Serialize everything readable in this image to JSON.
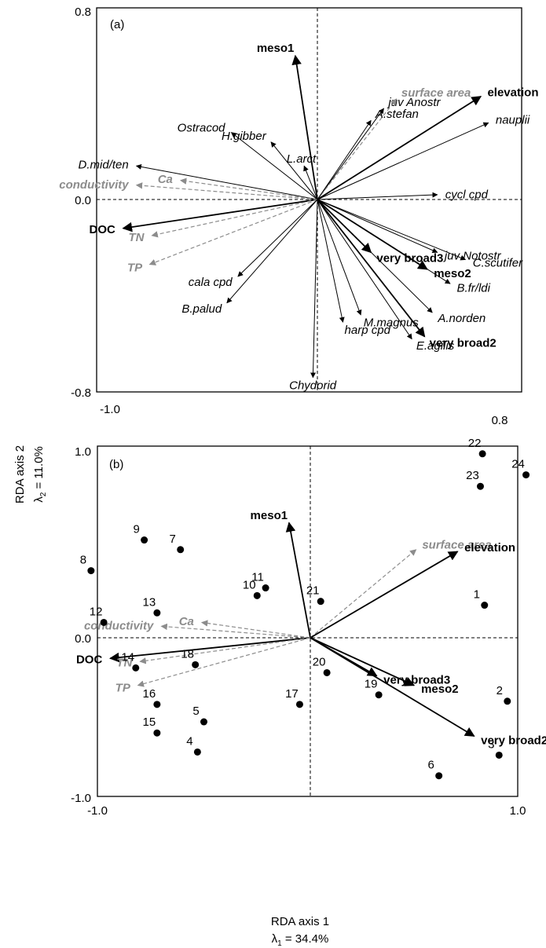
{
  "charts": [
    {
      "type": "scatter",
      "panel_label": "(a)",
      "xlim": [
        -1.0,
        0.8
      ],
      "ylim": [
        -0.8,
        0.8
      ],
      "x_ticks": [
        "-1.0",
        "0.8"
      ],
      "y_ticks": [
        "0.8",
        "0.0",
        "-0.8"
      ],
      "vectors": [
        {
          "name": "meso1",
          "x": -0.1,
          "y": 0.6,
          "style": "env"
        },
        {
          "name": "juv Anostr",
          "x": 0.26,
          "y": 0.38,
          "style": "species"
        },
        {
          "name": "surface area",
          "x": 0.31,
          "y": 0.42,
          "style": "env-grey"
        },
        {
          "name": "A.stefan",
          "x": 0.21,
          "y": 0.33,
          "style": "species"
        },
        {
          "name": "elevation",
          "x": 0.64,
          "y": 0.43,
          "style": "env"
        },
        {
          "name": "nauplii",
          "x": 0.67,
          "y": 0.32,
          "style": "species"
        },
        {
          "name": "Ostracod",
          "x": -0.39,
          "y": 0.28,
          "style": "species"
        },
        {
          "name": "H.gibber",
          "x": -0.21,
          "y": 0.24,
          "style": "species"
        },
        {
          "name": "L.arct",
          "x": -0.06,
          "y": 0.14,
          "style": "species"
        },
        {
          "name": "D.mid/ten",
          "x": -0.82,
          "y": 0.14,
          "style": "species"
        },
        {
          "name": "Ca",
          "x": -0.62,
          "y": 0.08,
          "style": "env-grey"
        },
        {
          "name": "conductivity",
          "x": -0.82,
          "y": 0.06,
          "style": "env-grey"
        },
        {
          "name": "cycl cpd",
          "x": 0.47,
          "y": 0.02,
          "style": "species"
        },
        {
          "name": "DOC",
          "x": -0.88,
          "y": -0.12,
          "style": "env"
        },
        {
          "name": "TN",
          "x": -0.75,
          "y": -0.15,
          "style": "env-grey"
        },
        {
          "name": "TP",
          "x": -0.76,
          "y": -0.27,
          "style": "env-grey"
        },
        {
          "name": "cala cpd",
          "x": -0.36,
          "y": -0.32,
          "style": "species"
        },
        {
          "name": "B.palud",
          "x": -0.41,
          "y": -0.43,
          "style": "species"
        },
        {
          "name": "juv Notostr",
          "x": 0.47,
          "y": -0.22,
          "style": "species"
        },
        {
          "name": "very broad3",
          "x": 0.21,
          "y": -0.22,
          "style": "env"
        },
        {
          "name": "C.scutifer",
          "x": 0.58,
          "y": -0.25,
          "style": "species"
        },
        {
          "name": "meso2",
          "x": 0.43,
          "y": -0.29,
          "style": "env"
        },
        {
          "name": "B.fr/ldi",
          "x": 0.52,
          "y": -0.35,
          "style": "species"
        },
        {
          "name": "M.magnus",
          "x": 0.17,
          "y": -0.48,
          "style": "species"
        },
        {
          "name": "A.norden",
          "x": 0.45,
          "y": -0.47,
          "style": "species"
        },
        {
          "name": "harp cpd",
          "x": 0.1,
          "y": -0.51,
          "style": "species"
        },
        {
          "name": "very broad2",
          "x": 0.42,
          "y": -0.57,
          "style": "env"
        },
        {
          "name": "E.agilis",
          "x": 0.37,
          "y": -0.58,
          "style": "species"
        },
        {
          "name": "Chydorid",
          "x": -0.02,
          "y": -0.74,
          "style": "species"
        }
      ]
    },
    {
      "type": "scatter",
      "panel_label": "(b)",
      "xlim": [
        -1.0,
        1.0
      ],
      "ylim": [
        -1.0,
        1.0
      ],
      "x_ticks": [
        "-1.0",
        "1.0"
      ],
      "y_ticks": [
        "1.0",
        "0.0",
        "-1.0"
      ],
      "vectors": [
        {
          "name": "meso1",
          "x": -0.1,
          "y": 0.6,
          "style": "env"
        },
        {
          "name": "surface area",
          "x": 0.51,
          "y": 0.46,
          "style": "env-grey"
        },
        {
          "name": "elevation",
          "x": 0.71,
          "y": 0.45,
          "style": "env"
        },
        {
          "name": "Ca",
          "x": -0.51,
          "y": 0.08,
          "style": "env-grey"
        },
        {
          "name": "conductivity",
          "x": -0.7,
          "y": 0.06,
          "style": "env-grey"
        },
        {
          "name": "DOC",
          "x": -0.94,
          "y": -0.13,
          "style": "env"
        },
        {
          "name": "TN",
          "x": -0.8,
          "y": -0.15,
          "style": "env-grey"
        },
        {
          "name": "TP",
          "x": -0.81,
          "y": -0.3,
          "style": "env-grey"
        },
        {
          "name": "very broad3",
          "x": 0.32,
          "y": -0.24,
          "style": "env"
        },
        {
          "name": "meso2",
          "x": 0.5,
          "y": -0.3,
          "style": "env"
        },
        {
          "name": "very broad2",
          "x": 0.79,
          "y": -0.62,
          "style": "env"
        }
      ],
      "sites": [
        {
          "label": "1",
          "x": 0.84,
          "y": 0.17
        },
        {
          "label": "2",
          "x": 0.95,
          "y": -0.4
        },
        {
          "label": "3",
          "x": 0.91,
          "y": -0.74
        },
        {
          "label": "4",
          "x": -0.53,
          "y": -0.72
        },
        {
          "label": "5",
          "x": -0.5,
          "y": -0.53
        },
        {
          "label": "6",
          "x": 0.62,
          "y": -0.87
        },
        {
          "label": "7",
          "x": -0.61,
          "y": 0.46
        },
        {
          "label": "8",
          "x": -1.03,
          "y": 0.35
        },
        {
          "label": "9",
          "x": -0.78,
          "y": 0.51
        },
        {
          "label": "10",
          "x": -0.25,
          "y": 0.22
        },
        {
          "label": "11",
          "x": -0.21,
          "y": 0.26
        },
        {
          "label": "12",
          "x": -0.97,
          "y": 0.08
        },
        {
          "label": "13",
          "x": -0.72,
          "y": 0.13
        },
        {
          "label": "14",
          "x": -0.82,
          "y": -0.19
        },
        {
          "label": "15",
          "x": -0.72,
          "y": -0.6
        },
        {
          "label": "16",
          "x": -0.72,
          "y": -0.42
        },
        {
          "label": "17",
          "x": -0.05,
          "y": -0.42
        },
        {
          "label": "18",
          "x": -0.54,
          "y": -0.17
        },
        {
          "label": "19",
          "x": 0.33,
          "y": -0.36
        },
        {
          "label": "20",
          "x": 0.08,
          "y": -0.22
        },
        {
          "label": "21",
          "x": 0.05,
          "y": 0.19
        },
        {
          "label": "22",
          "x": 0.83,
          "y": 0.96
        },
        {
          "label": "23",
          "x": 0.82,
          "y": 0.79
        },
        {
          "label": "24",
          "x": 1.04,
          "y": 0.85
        }
      ]
    }
  ],
  "y_axis": {
    "title": "RDA axis 2",
    "eigen_prefix": "λ",
    "eigen_sub": "2",
    "eigen_value": " = 11.0%"
  },
  "x_axis": {
    "title": "RDA axis 1",
    "eigen_prefix": "λ",
    "eigen_sub": "1",
    "eigen_value": " = 34.4%"
  },
  "colors": {
    "env": "#000000",
    "env_grey": "#8c8c8c",
    "species": "#000000"
  }
}
